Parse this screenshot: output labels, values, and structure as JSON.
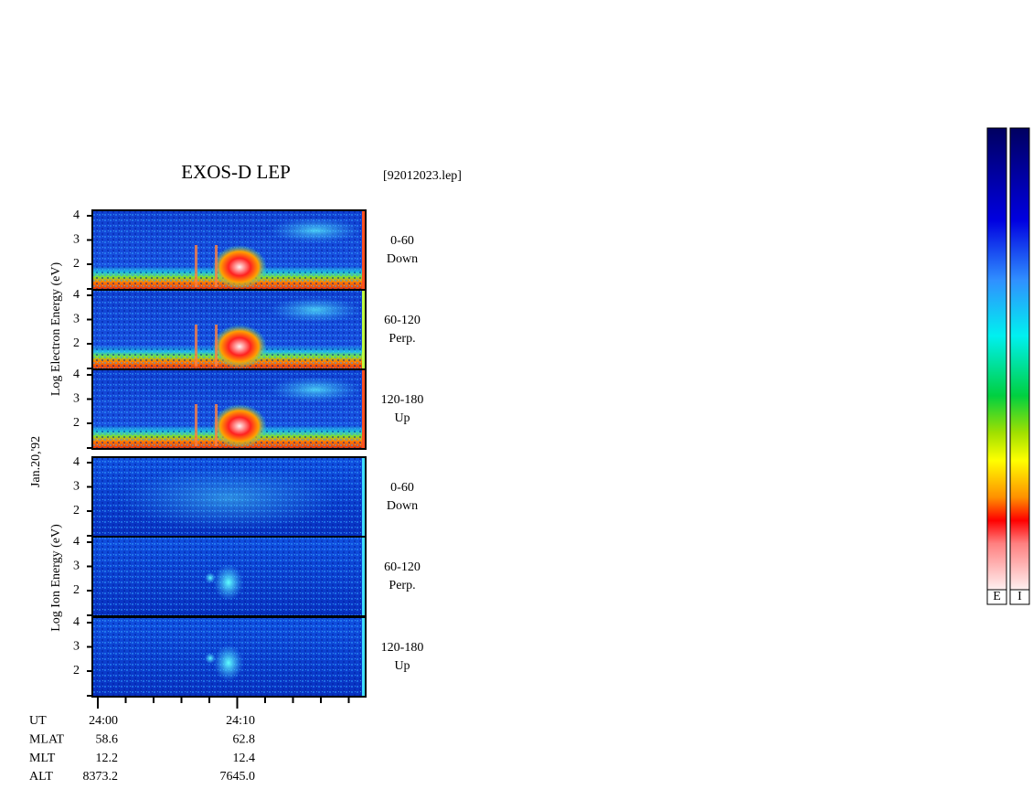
{
  "header": {
    "title": "EXOS-D LEP",
    "file": "[92012023.lep]"
  },
  "axes": {
    "electron_label": "Log Electron Energy (eV)",
    "ion_label": "Log Ion Energy (eV)",
    "date": "Jan.20,'92"
  },
  "yticks": [
    "4",
    "3",
    "2"
  ],
  "panels": [
    {
      "angle": "0-60",
      "direction": "Down"
    },
    {
      "angle": "60-120",
      "direction": "Perp."
    },
    {
      "angle": "120-180",
      "direction": "Up"
    },
    {
      "angle": "0-60",
      "direction": "Down"
    },
    {
      "angle": "60-120",
      "direction": "Perp."
    },
    {
      "angle": "120-180",
      "direction": "Up"
    }
  ],
  "footer": {
    "rows": [
      {
        "label": "UT",
        "values": [
          "24:00",
          "24:10"
        ]
      },
      {
        "label": "MLAT",
        "values": [
          "58.6",
          "62.8"
        ]
      },
      {
        "label": "MLT",
        "values": [
          "12.2",
          "12.4"
        ]
      },
      {
        "label": "ALT",
        "values": [
          "8373.2",
          "7645.0"
        ]
      }
    ]
  },
  "colorbar": {
    "labels": [
      "E",
      "I"
    ]
  }
}
